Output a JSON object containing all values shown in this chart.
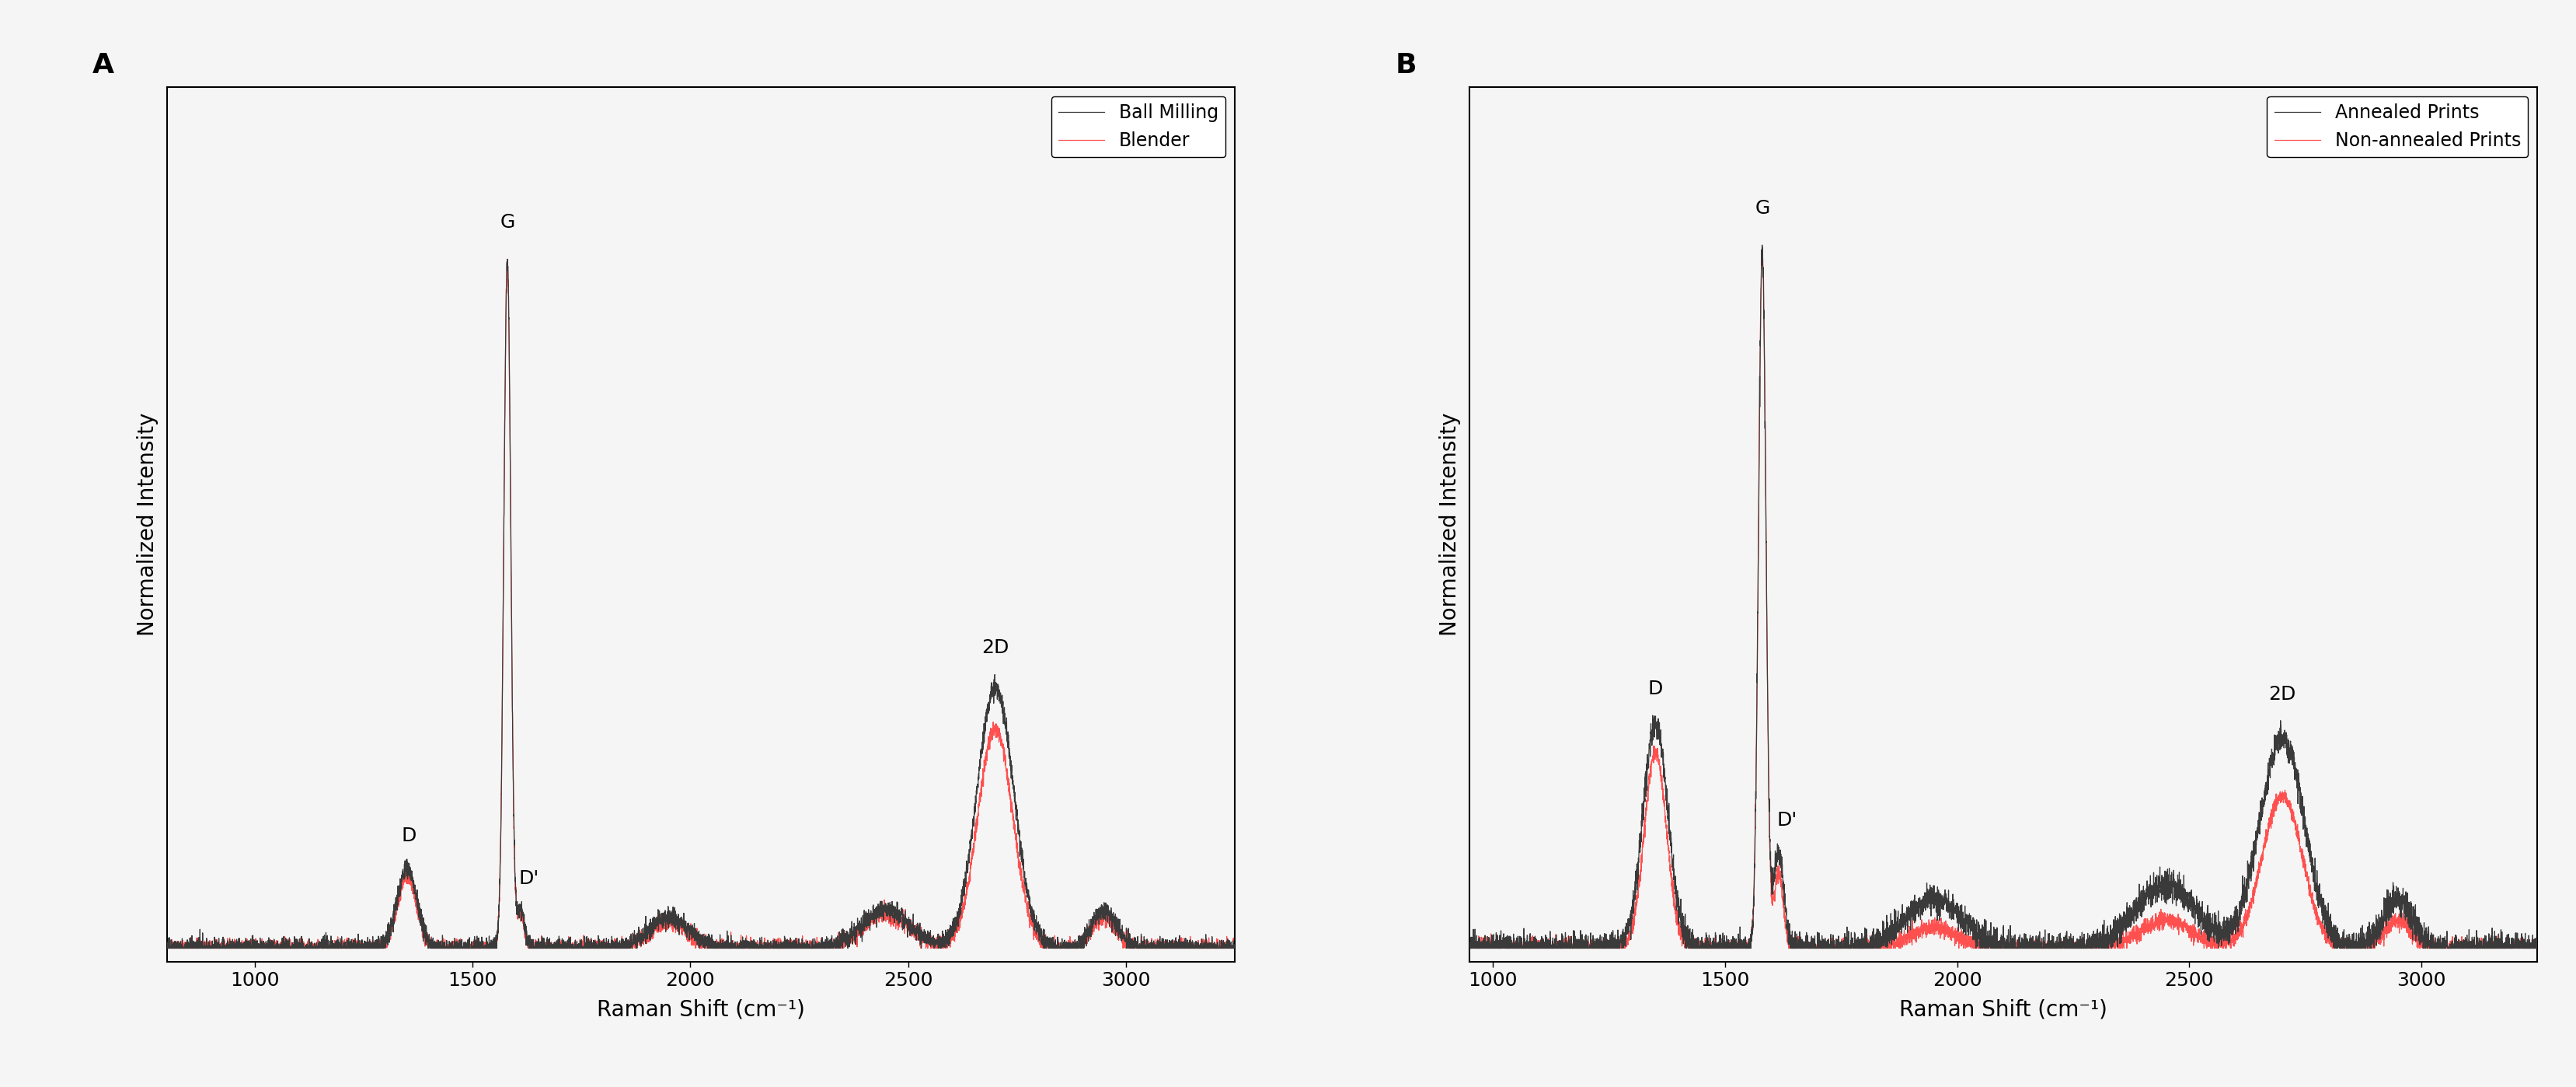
{
  "panel_A": {
    "label": "A",
    "xlabel": "Raman Shift (cm⁻¹)",
    "ylabel": "Normalized Intensity",
    "xlim": [
      800,
      3250
    ],
    "ylim": [
      -0.02,
      1.25
    ],
    "legend": [
      "Ball Milling",
      "Blender"
    ],
    "line_colors": [
      "#3a3a3a",
      "#ff5050"
    ],
    "annotation_fontsize": 18
  },
  "panel_B": {
    "label": "B",
    "xlabel": "Raman Shift (cm⁻¹)",
    "ylabel": "Normalized Intensity",
    "xlim": [
      950,
      3250
    ],
    "ylim": [
      -0.02,
      1.25
    ],
    "legend": [
      "Annealed Prints",
      "Non-annealed Prints"
    ],
    "line_colors": [
      "#3a3a3a",
      "#ff5050"
    ],
    "annotation_fontsize": 18
  },
  "xticks_A": [
    1000,
    1500,
    2000,
    2500,
    3000
  ],
  "xticks_B": [
    1000,
    1500,
    2000,
    2500,
    3000
  ],
  "background_color": "#f5f5f5",
  "axes_bg": "#f5f5f5",
  "figure_label_fontsize": 26,
  "axis_label_fontsize": 20,
  "tick_fontsize": 18,
  "legend_fontsize": 17,
  "lw_dark": 0.9,
  "lw_red": 0.9
}
